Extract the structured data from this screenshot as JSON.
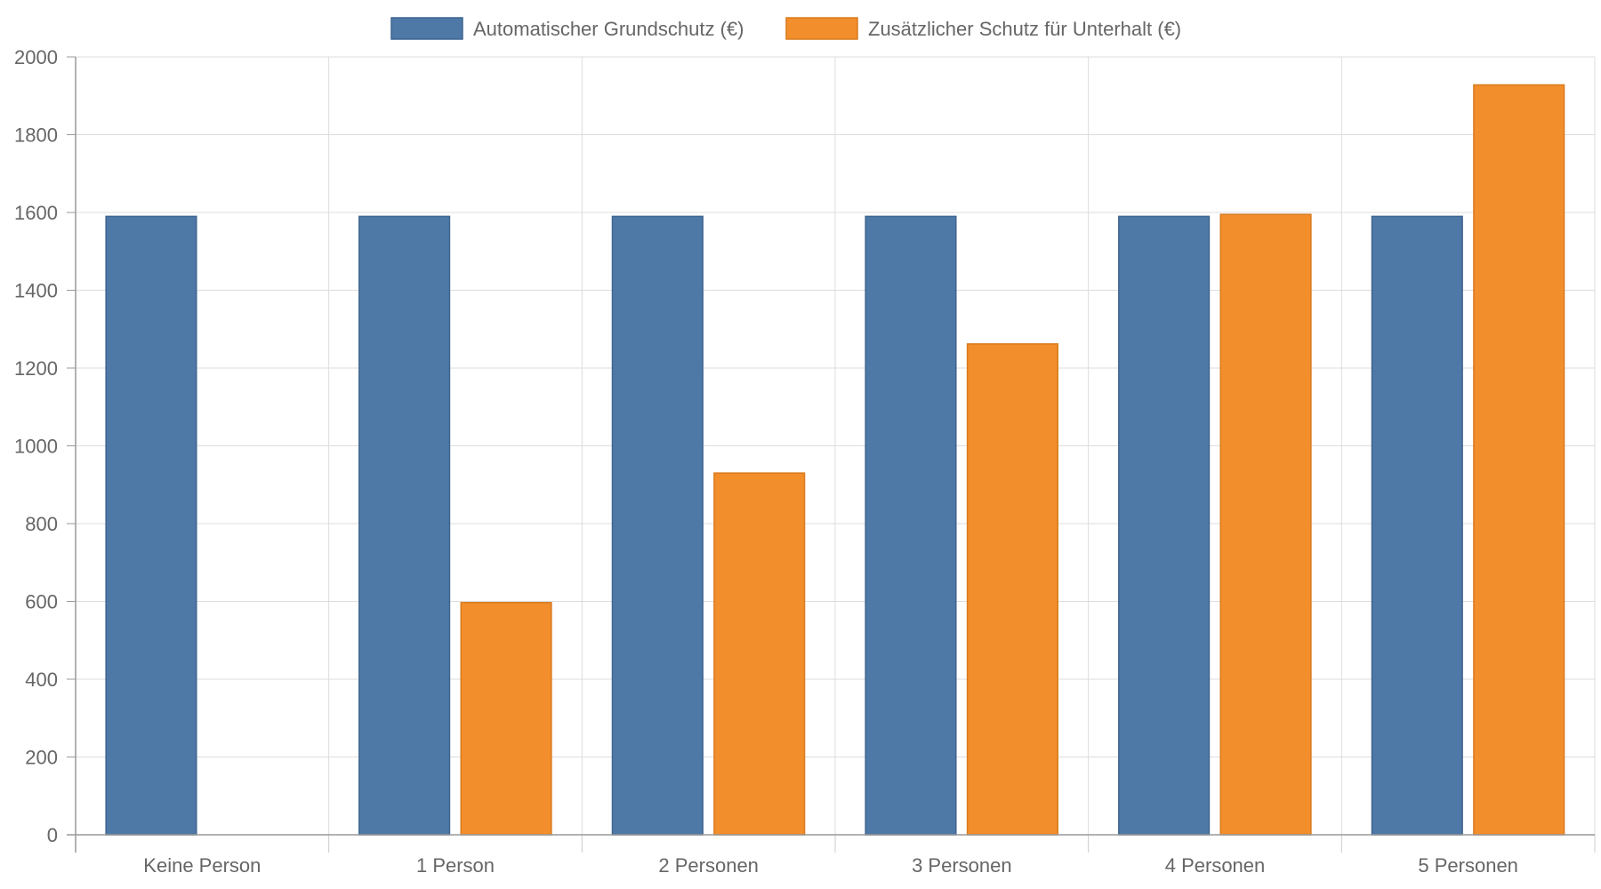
{
  "chart_data": {
    "type": "bar",
    "categories": [
      "Keine Person",
      "1 Person",
      "2 Personen",
      "3 Personen",
      "4 Personen",
      "5 Personen"
    ],
    "series": [
      {
        "name": "Automatischer Grundschutz (€)",
        "color": "#4e79a7",
        "values": [
          1590,
          1590,
          1590,
          1590,
          1590,
          1590
        ]
      },
      {
        "name": "Zusätzlicher Schutz für Unterhalt (€)",
        "color": "#f28e2b",
        "values": [
          0,
          597,
          930,
          1262,
          1595,
          1928
        ]
      }
    ],
    "ylim": [
      0,
      2000
    ],
    "yticks": [
      "0",
      "200",
      "400",
      "600",
      "800",
      "1000",
      "1200",
      "1400",
      "1600",
      "1800",
      "2000"
    ],
    "grid": true,
    "legend": "top-center"
  }
}
